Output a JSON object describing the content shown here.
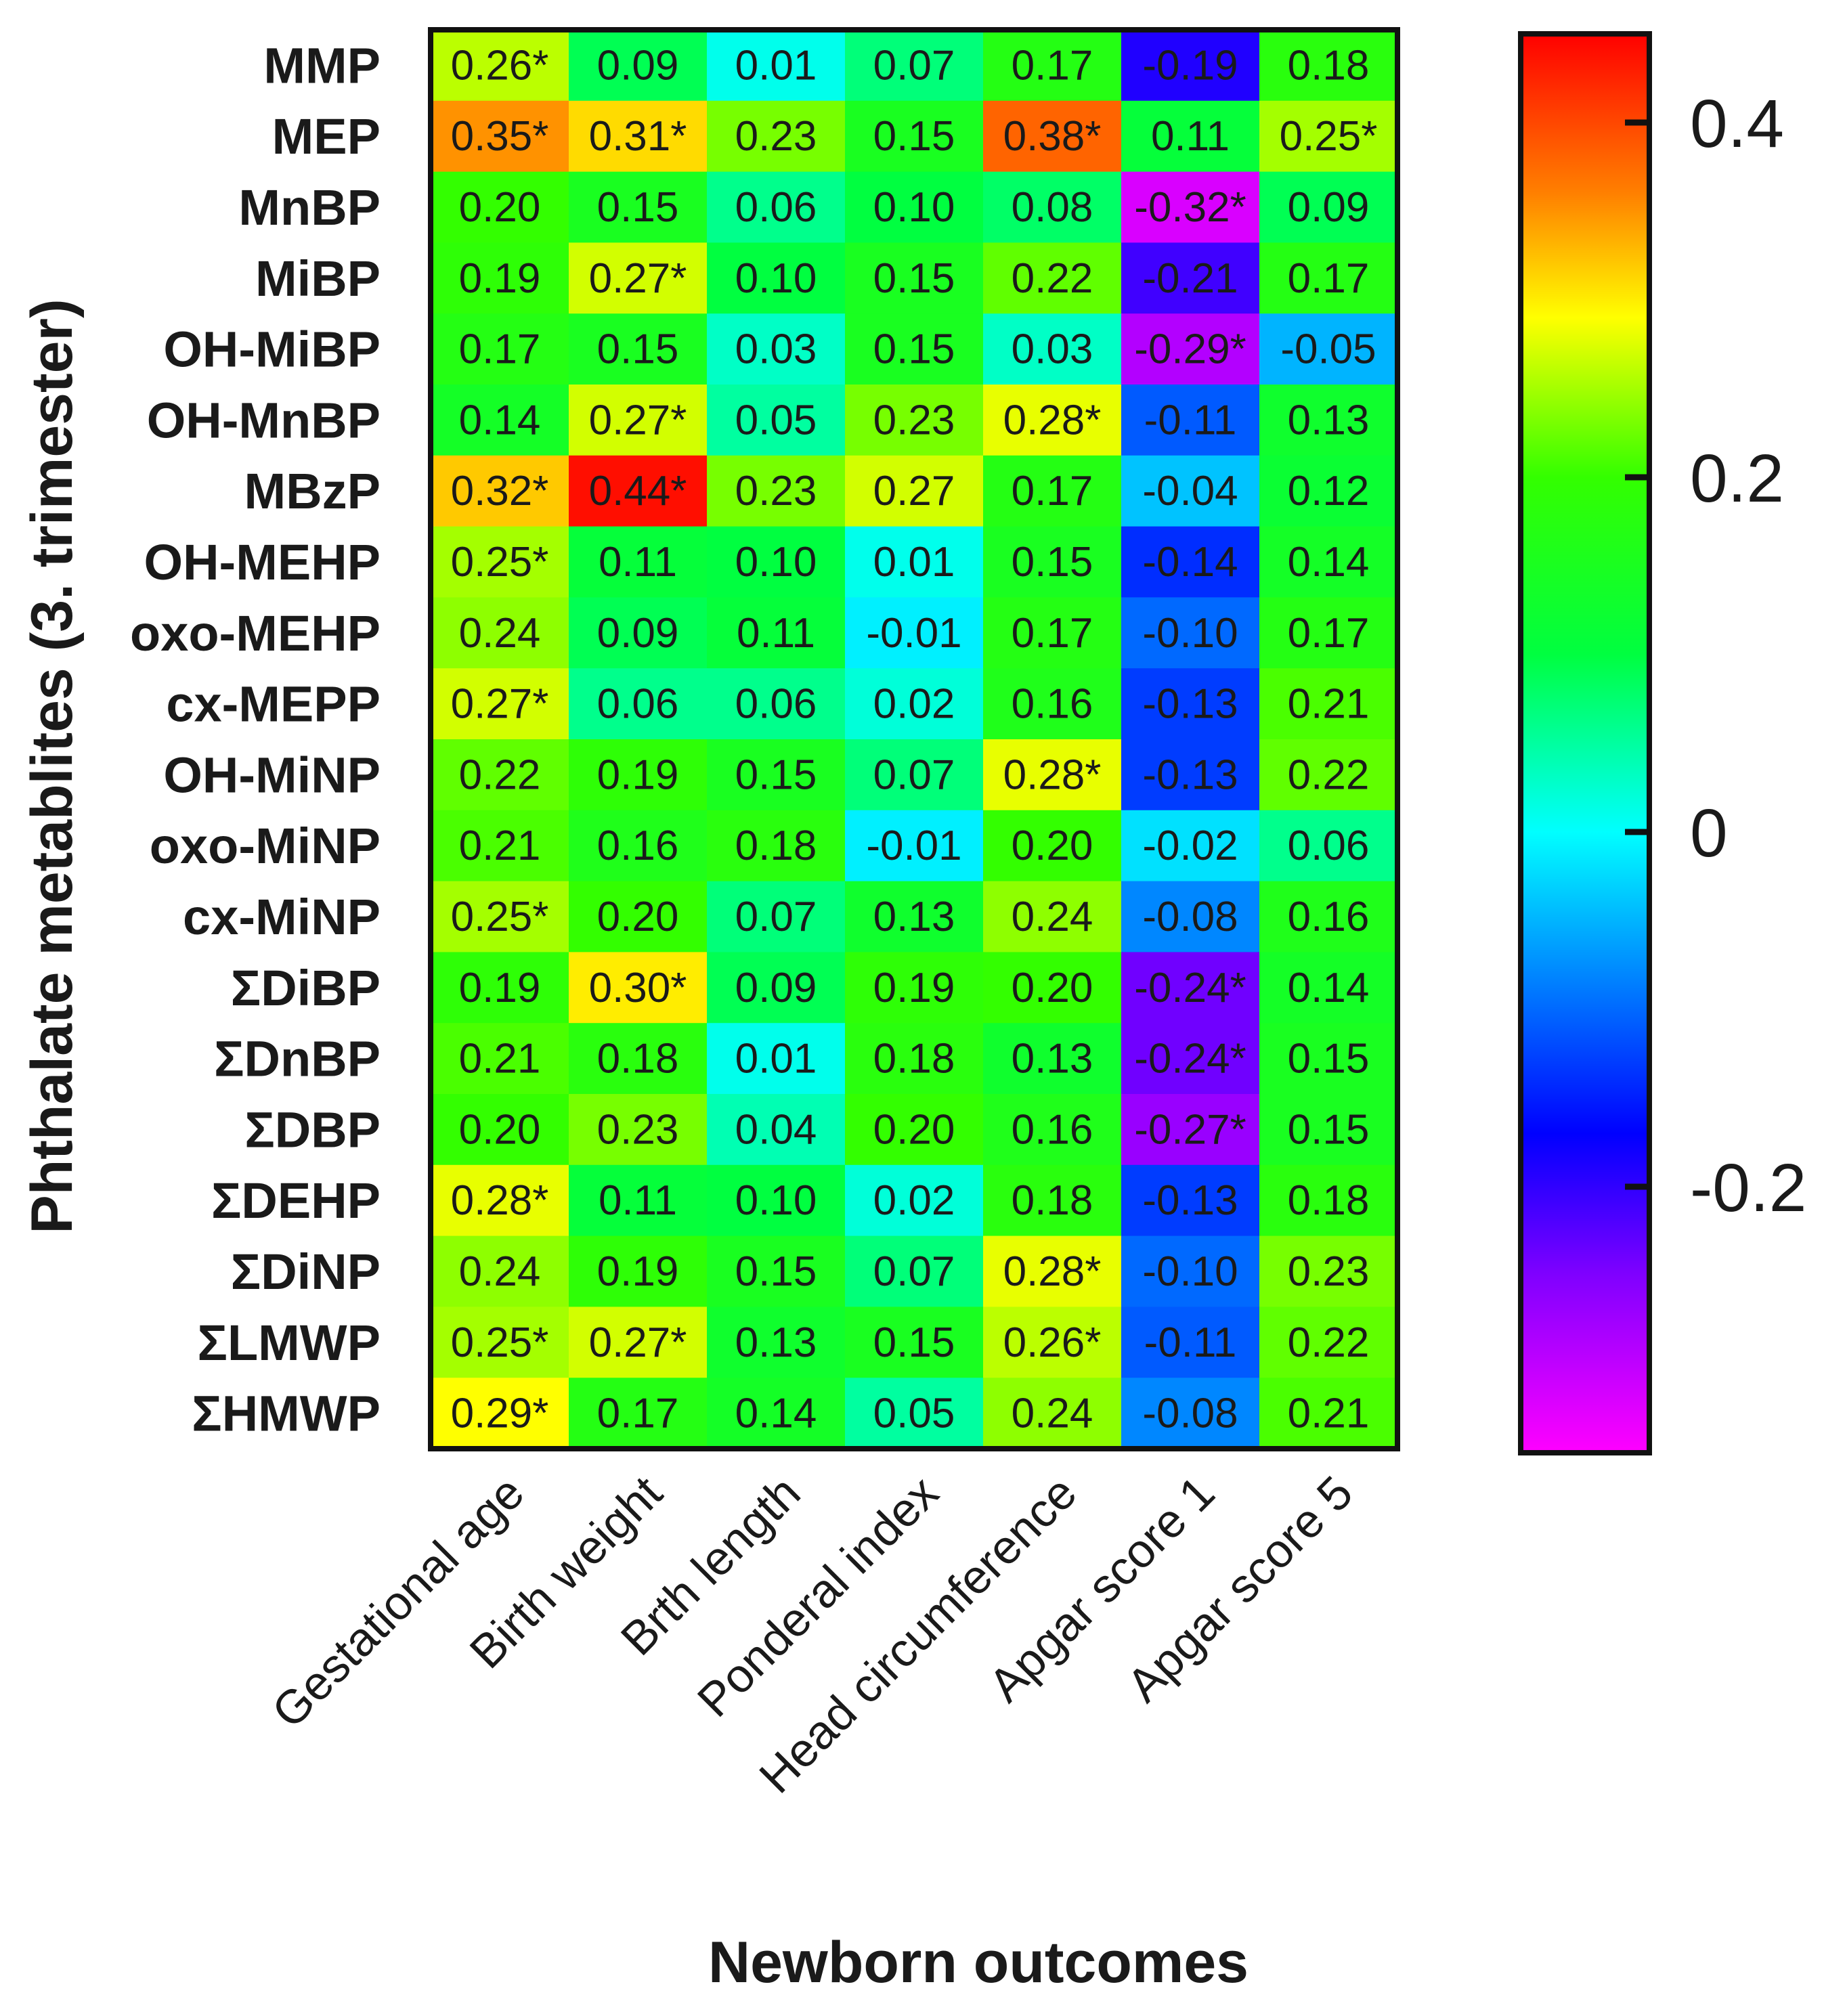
{
  "chart_data": {
    "type": "heatmap",
    "title": "",
    "xlabel": "Newborn outcomes",
    "ylabel": "Phthalate metablites (3. trimester)",
    "columns": [
      "Gestational age",
      "Birth weight",
      "Brth length",
      "Ponderal index",
      "Head circumference",
      "Apgar score 1",
      "Apgar score 5"
    ],
    "rows": [
      "MMP",
      "MEP",
      "MnBP",
      "MiBP",
      "OH-MiBP",
      "OH-MnBP",
      "MBzP",
      "OH-MEHP",
      "oxo-MEHP",
      "cx-MEPP",
      "OH-MiNP",
      "oxo-MiNP",
      "cx-MiNP",
      "ΣDiBP",
      "ΣDnBP",
      "ΣDBP",
      "ΣDEHP",
      "ΣDiNP",
      "ΣLMWP",
      "ΣHMWP"
    ],
    "values": [
      [
        0.26,
        0.09,
        0.01,
        0.07,
        0.17,
        -0.19,
        0.18
      ],
      [
        0.35,
        0.31,
        0.23,
        0.15,
        0.38,
        0.11,
        0.25
      ],
      [
        0.2,
        0.15,
        0.06,
        0.1,
        0.08,
        -0.32,
        0.09
      ],
      [
        0.19,
        0.27,
        0.1,
        0.15,
        0.22,
        -0.21,
        0.17
      ],
      [
        0.17,
        0.15,
        0.03,
        0.15,
        0.03,
        -0.29,
        -0.05
      ],
      [
        0.14,
        0.27,
        0.05,
        0.23,
        0.28,
        -0.11,
        0.13
      ],
      [
        0.32,
        0.44,
        0.23,
        0.27,
        0.17,
        -0.04,
        0.12
      ],
      [
        0.25,
        0.11,
        0.1,
        0.01,
        0.15,
        -0.14,
        0.14
      ],
      [
        0.24,
        0.09,
        0.11,
        -0.01,
        0.17,
        -0.1,
        0.17
      ],
      [
        0.27,
        0.06,
        0.06,
        0.02,
        0.16,
        -0.13,
        0.21
      ],
      [
        0.22,
        0.19,
        0.15,
        0.07,
        0.28,
        -0.13,
        0.22
      ],
      [
        0.21,
        0.16,
        0.18,
        -0.01,
        0.2,
        -0.02,
        0.06
      ],
      [
        0.25,
        0.2,
        0.07,
        0.13,
        0.24,
        -0.08,
        0.16
      ],
      [
        0.19,
        0.3,
        0.09,
        0.19,
        0.2,
        -0.24,
        0.14
      ],
      [
        0.21,
        0.18,
        0.01,
        0.18,
        0.13,
        -0.24,
        0.15
      ],
      [
        0.2,
        0.23,
        0.04,
        0.2,
        0.16,
        -0.27,
        0.15
      ],
      [
        0.28,
        0.11,
        0.1,
        0.02,
        0.18,
        -0.13,
        0.18
      ],
      [
        0.24,
        0.19,
        0.15,
        0.07,
        0.28,
        -0.1,
        0.23
      ],
      [
        0.25,
        0.27,
        0.13,
        0.15,
        0.26,
        -0.11,
        0.22
      ],
      [
        0.29,
        0.17,
        0.14,
        0.05,
        0.24,
        -0.08,
        0.21
      ]
    ],
    "labels": [
      [
        "0.26*",
        "0.09",
        "0.01",
        "0.07",
        "0.17",
        "-0.19",
        "0.18"
      ],
      [
        "0.35*",
        "0.31*",
        "0.23",
        "0.15",
        "0.38*",
        "0.11",
        "0.25*"
      ],
      [
        "0.20",
        "0.15",
        "0.06",
        "0.10",
        "0.08",
        "-0.32*",
        "0.09"
      ],
      [
        "0.19",
        "0.27*",
        "0.10",
        "0.15",
        "0.22",
        "-0.21",
        "0.17"
      ],
      [
        "0.17",
        "0.15",
        "0.03",
        "0.15",
        "0.03",
        "-0.29*",
        "-0.05"
      ],
      [
        "0.14",
        "0.27*",
        "0.05",
        "0.23",
        "0.28*",
        "-0.11",
        "0.13"
      ],
      [
        "0.32*",
        "0.44*",
        "0.23",
        "0.27",
        "0.17",
        "-0.04",
        "0.12"
      ],
      [
        "0.25*",
        "0.11",
        "0.10",
        "0.01",
        "0.15",
        "-0.14",
        "0.14"
      ],
      [
        "0.24",
        "0.09",
        "0.11",
        "-0.01",
        "0.17",
        "-0.10",
        "0.17"
      ],
      [
        "0.27*",
        "0.06",
        "0.06",
        "0.02",
        "0.16",
        "-0.13",
        "0.21"
      ],
      [
        "0.22",
        "0.19",
        "0.15",
        "0.07",
        "0.28*",
        "-0.13",
        "0.22"
      ],
      [
        "0.21",
        "0.16",
        "0.18",
        "-0.01",
        "0.20",
        "-0.02",
        "0.06"
      ],
      [
        "0.25*",
        "0.20",
        "0.07",
        "0.13",
        "0.24",
        "-0.08",
        "0.16"
      ],
      [
        "0.19",
        "0.30*",
        "0.09",
        "0.19",
        "0.20",
        "-0.24*",
        "0.14"
      ],
      [
        "0.21",
        "0.18",
        "0.01",
        "0.18",
        "0.13",
        "-0.24*",
        "0.15"
      ],
      [
        "0.20",
        "0.23",
        "0.04",
        "0.20",
        "0.16",
        "-0.27*",
        "0.15"
      ],
      [
        "0.28*",
        "0.11",
        "0.10",
        "0.02",
        "0.18",
        "-0.13",
        "0.18"
      ],
      [
        "0.24",
        "0.19",
        "0.15",
        "0.07",
        "0.28*",
        "-0.10",
        "0.23"
      ],
      [
        "0.25*",
        "0.27*",
        "0.13",
        "0.15",
        "0.26*",
        "-0.11",
        "0.22"
      ],
      [
        "0.29*",
        "0.17",
        "0.14",
        "0.05",
        "0.24",
        "-0.08",
        "0.21"
      ]
    ],
    "colorbar": {
      "range": [
        -0.35,
        0.45
      ],
      "ticks": [
        0.4,
        0.2,
        0,
        -0.2
      ],
      "tick_labels": [
        "0.4",
        "0.2",
        "0",
        "-0.2"
      ],
      "colormap": [
        {
          "value": -0.35,
          "color": "#ff00ff"
        },
        {
          "value": -0.25,
          "color": "#8000ff"
        },
        {
          "value": -0.17,
          "color": "#0000ff"
        },
        {
          "value": 0.0,
          "color": "#00ffff"
        },
        {
          "value": 0.1,
          "color": "#00ff40"
        },
        {
          "value": 0.2,
          "color": "#33ff00"
        },
        {
          "value": 0.29,
          "color": "#ffff00"
        },
        {
          "value": 0.36,
          "color": "#ff8000"
        },
        {
          "value": 0.45,
          "color": "#ff0000"
        }
      ]
    },
    "grid": false,
    "legend": "right"
  }
}
